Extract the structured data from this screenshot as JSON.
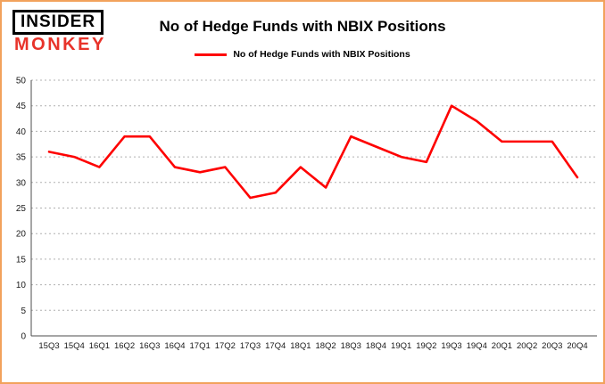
{
  "logo": {
    "line1": "INSIDER",
    "line2": "MONKEY"
  },
  "header": {
    "title": "No of Hedge Funds with NBIX Positions"
  },
  "legend": {
    "label": "No of Hedge Funds with NBIX Positions"
  },
  "colors": {
    "line": "#fe0000",
    "frame_border": "#f2a25c",
    "grid": "#b0b0b0",
    "axis": "#4d4d4d",
    "logo_red": "#e8332a"
  },
  "chart_data": {
    "type": "line",
    "title": "No of Hedge Funds with NBIX Positions",
    "categories": [
      "15Q3",
      "15Q4",
      "16Q1",
      "16Q2",
      "16Q3",
      "16Q4",
      "17Q1",
      "17Q2",
      "17Q3",
      "17Q4",
      "18Q1",
      "18Q2",
      "18Q3",
      "18Q4",
      "19Q1",
      "19Q2",
      "19Q3",
      "19Q4",
      "20Q1",
      "20Q2",
      "20Q3",
      "20Q4"
    ],
    "series": [
      {
        "name": "No of Hedge Funds with NBIX Positions",
        "color": "#fe0000",
        "values": [
          36,
          35,
          33,
          39,
          39,
          33,
          32,
          33,
          27,
          28,
          33,
          29,
          39,
          37,
          35,
          34,
          45,
          42,
          38,
          38,
          38,
          31
        ]
      }
    ],
    "xlabel": "",
    "ylabel": "",
    "ylim": [
      0,
      50
    ],
    "ytick_interval": 5,
    "grid": true,
    "legend_position": "top"
  }
}
